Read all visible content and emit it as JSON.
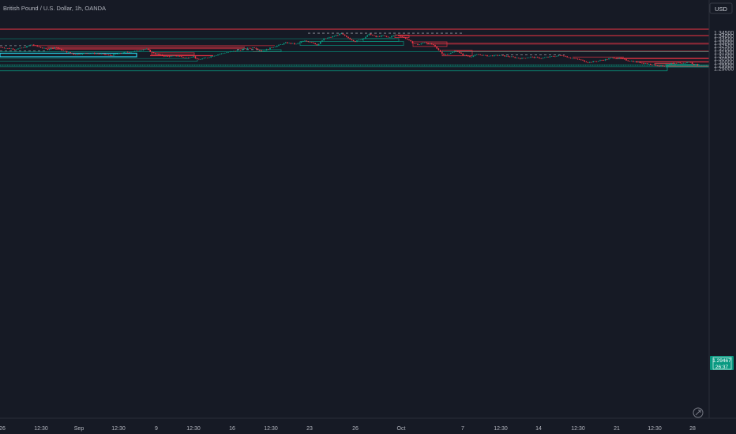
{
  "header": {
    "symbol_title": "British Pound / U.S. Dollar, 1h, OANDA"
  },
  "currency_label": "USD",
  "chart_data": {
    "type": "candlestick",
    "title": "British Pound / U.S. Dollar, 1h, OANDA",
    "ylabel": "USD",
    "ylim": [
      1.2855,
      1.3495
    ],
    "y_ticks": [
      "1.34500",
      "1.34000",
      "1.33500",
      "1.33000",
      "1.32500",
      "1.32000",
      "1.31500",
      "1.31000",
      "1.30500",
      "1.30000",
      "1.29500",
      "1.29000"
    ],
    "x_ticks": [
      "26",
      "12:30",
      "Sep",
      "12:30",
      "9",
      "12:30",
      "16",
      "12:30",
      "23",
      "26",
      "Oct",
      "7",
      "12:30",
      "14",
      "12:30",
      "21",
      "12:30",
      "28"
    ],
    "last_price": "1.29467",
    "countdown": "26:37",
    "grid": false,
    "price_path": [
      [
        0,
        1.3225
      ],
      [
        10,
        1.3205
      ],
      [
        20,
        1.3195
      ],
      [
        30,
        1.3215
      ],
      [
        40,
        1.3265
      ],
      [
        50,
        1.3225
      ],
      [
        60,
        1.319
      ],
      [
        70,
        1.3225
      ],
      [
        80,
        1.317
      ],
      [
        95,
        1.311
      ],
      [
        110,
        1.3135
      ],
      [
        125,
        1.3125
      ],
      [
        140,
        1.3095
      ],
      [
        155,
        1.314
      ],
      [
        170,
        1.316
      ],
      [
        185,
        1.32
      ],
      [
        192,
        1.3145
      ],
      [
        200,
        1.3115
      ],
      [
        210,
        1.308
      ],
      [
        225,
        1.309
      ],
      [
        235,
        1.306
      ],
      [
        245,
        1.3085
      ],
      [
        250,
        1.303
      ],
      [
        262,
        1.3065
      ],
      [
        275,
        1.311
      ],
      [
        285,
        1.314
      ],
      [
        300,
        1.317
      ],
      [
        310,
        1.32
      ],
      [
        322,
        1.322
      ],
      [
        332,
        1.316
      ],
      [
        342,
        1.321
      ],
      [
        352,
        1.325
      ],
      [
        362,
        1.329
      ],
      [
        375,
        1.327
      ],
      [
        385,
        1.332
      ],
      [
        395,
        1.33
      ],
      [
        402,
        1.3255
      ],
      [
        410,
        1.335
      ],
      [
        420,
        1.338
      ],
      [
        432,
        1.343
      ],
      [
        438,
        1.338
      ],
      [
        445,
        1.334
      ],
      [
        450,
        1.331
      ],
      [
        460,
        1.336
      ],
      [
        468,
        1.3425
      ],
      [
        476,
        1.338
      ],
      [
        485,
        1.34
      ],
      [
        492,
        1.337
      ],
      [
        500,
        1.341
      ],
      [
        508,
        1.339
      ],
      [
        515,
        1.335
      ],
      [
        522,
        1.329
      ],
      [
        530,
        1.326
      ],
      [
        538,
        1.33
      ],
      [
        548,
        1.326
      ],
      [
        555,
        1.318
      ],
      [
        562,
        1.311
      ],
      [
        570,
        1.313
      ],
      [
        578,
        1.317
      ],
      [
        585,
        1.311
      ],
      [
        595,
        1.308
      ],
      [
        605,
        1.311
      ],
      [
        618,
        1.309
      ],
      [
        632,
        1.31
      ],
      [
        645,
        1.308
      ],
      [
        660,
        1.305
      ],
      [
        672,
        1.3075
      ],
      [
        685,
        1.3055
      ],
      [
        698,
        1.308
      ],
      [
        712,
        1.31
      ],
      [
        722,
        1.306
      ],
      [
        735,
        1.303
      ],
      [
        745,
        1.299
      ],
      [
        755,
        1.301
      ],
      [
        765,
        1.303
      ],
      [
        775,
        1.306
      ],
      [
        785,
        1.305
      ],
      [
        795,
        1.302
      ],
      [
        805,
        1.3
      ],
      [
        815,
        1.298
      ],
      [
        825,
        1.296
      ],
      [
        835,
        1.2935
      ],
      [
        843,
        1.292
      ],
      [
        850,
        1.2975
      ],
      [
        858,
        1.2985
      ],
      [
        865,
        1.2975
      ],
      [
        872,
        1.3
      ],
      [
        878,
        1.2965
      ],
      [
        884,
        1.2948
      ]
    ],
    "horizontal_levels": [
      {
        "price": 1.34015,
        "from_x": 505,
        "to_x": 898,
        "color": "#f23645"
      },
      {
        "price": 1.33975,
        "from_x": 505,
        "to_x": 898,
        "color": "#f23645"
      },
      {
        "price": 1.32835,
        "from_x": 540,
        "to_x": 898,
        "color": "#f23645"
      },
      {
        "price": 1.32705,
        "from_x": 540,
        "to_x": 898,
        "color": "#f23645"
      },
      {
        "price": 1.3164,
        "from_x": 575,
        "to_x": 898,
        "color": "#f23645"
      },
      {
        "price": 1.3158,
        "from_x": 575,
        "to_x": 898,
        "color": "#f23645"
      },
      {
        "price": 1.30575,
        "from_x": 780,
        "to_x": 898,
        "color": "#f23645"
      },
      {
        "price": 1.30515,
        "from_x": 780,
        "to_x": 898,
        "color": "#f23645"
      },
      {
        "price": 1.30475,
        "from_x": 780,
        "to_x": 898,
        "color": "#f23645"
      },
      {
        "price": 1.32465,
        "from_x": 40,
        "to_x": 348,
        "color": "#f23645"
      },
      {
        "price": 1.32245,
        "from_x": 60,
        "to_x": 310,
        "color": "#f23645"
      },
      {
        "price": 1.32195,
        "from_x": 60,
        "to_x": 310,
        "color": "#f23645"
      },
      {
        "price": 1.32,
        "from_x": 60,
        "to_x": 310,
        "color": "#f23645"
      },
      {
        "price": 1.3193,
        "from_x": 70,
        "to_x": 190,
        "color": "#f23645"
      },
      {
        "price": 1.30985,
        "from_x": 190,
        "to_x": 270,
        "color": "#f23645"
      },
      {
        "price": 1.3091,
        "from_x": 190,
        "to_x": 270,
        "color": "#f23645"
      },
      {
        "price": 1.30045,
        "from_x": 805,
        "to_x": 898,
        "color": "#f23645"
      },
      {
        "price": 1.29955,
        "from_x": 805,
        "to_x": 898,
        "color": "#f23645"
      },
      {
        "price": 1.30735,
        "from_x": 725,
        "to_x": 790,
        "color": "#f23645"
      },
      {
        "price": 1.3155,
        "from_x": 320,
        "to_x": 355,
        "color": "#f23645"
      },
      {
        "price": 1.3353,
        "from_x": 0,
        "to_x": 500,
        "color": "#089981"
      },
      {
        "price": 1.3153,
        "from_x": 0,
        "to_x": 898,
        "color": "#089981"
      },
      {
        "price": 1.305,
        "from_x": 0,
        "to_x": 240,
        "color": "#089981"
      },
      {
        "price": 1.301,
        "from_x": 0,
        "to_x": 250,
        "color": "#089981"
      },
      {
        "price": 1.2953,
        "from_x": 0,
        "to_x": 898,
        "color": "#089981"
      },
      {
        "price": 1.29225,
        "from_x": 0,
        "to_x": 898,
        "color": "#089981"
      },
      {
        "price": 1.2945,
        "from_x": 843,
        "to_x": 898,
        "color": "#089981"
      },
      {
        "price": 1.2934,
        "from_x": 843,
        "to_x": 898,
        "color": "#089981"
      },
      {
        "price": 1.292,
        "from_x": 843,
        "to_x": 898,
        "color": "#089981"
      },
      {
        "price": 1.293,
        "from_x": 843,
        "to_x": 898,
        "color": "#f23645"
      },
      {
        "price": 1.2977,
        "from_x": 830,
        "to_x": 855,
        "color": "#089981"
      }
    ],
    "dashed_levels": [
      {
        "price": 1.34375,
        "from_x": 390,
        "to_x": 585,
        "color": "#9598a1"
      },
      {
        "price": 1.32465,
        "from_x": 0,
        "to_x": 40,
        "color": "#9598a1"
      },
      {
        "price": 1.3168,
        "from_x": 0,
        "to_x": 60,
        "color": "#9598a1"
      },
      {
        "price": 1.3105,
        "from_x": 635,
        "to_x": 715,
        "color": "#9598a1"
      },
      {
        "price": 1.3187,
        "from_x": 300,
        "to_x": 330,
        "color": "#9598a1"
      }
    ],
    "zones": [
      {
        "p1": 1.341,
        "p2": 1.337,
        "x1": 500,
        "x2": 518,
        "color": "#f23645"
      },
      {
        "p1": 1.3305,
        "p2": 1.3235,
        "x1": 523,
        "x2": 566,
        "color": "#f23645"
      },
      {
        "p1": 1.3174,
        "p2": 1.3092,
        "x1": 560,
        "x2": 598,
        "color": "#f23645"
      },
      {
        "p1": 1.31375,
        "p2": 1.3105,
        "x1": 192,
        "x2": 246,
        "color": "#f23645"
      },
      {
        "p1": 1.2976,
        "p2": 1.29475,
        "x1": 829,
        "x2": 855,
        "color": "#f23645"
      },
      {
        "p1": 1.325,
        "p2": 1.3312,
        "x1": 380,
        "x2": 511,
        "color": "#089981"
      },
      {
        "p1": 1.3312,
        "p2": 1.3355,
        "x1": 460,
        "x2": 505,
        "color": "#089981"
      },
      {
        "p1": 1.3155,
        "p2": 1.3185,
        "x1": 328,
        "x2": 356,
        "color": "#089981"
      },
      {
        "p1": 1.29475,
        "p2": 1.2961,
        "x1": 843,
        "x2": 885,
        "color": "#089981"
      }
    ],
    "highlight_box": {
      "p1": 1.3131,
      "p2": 1.3077,
      "x1": 0,
      "x2": 173,
      "color": "#26c6da"
    },
    "top_line": {
      "price": 1.3498,
      "color": "#f23645"
    },
    "bottom_line": {
      "price": 1.2863,
      "from_x": 0,
      "to_x": 845,
      "color": "#089981"
    }
  }
}
